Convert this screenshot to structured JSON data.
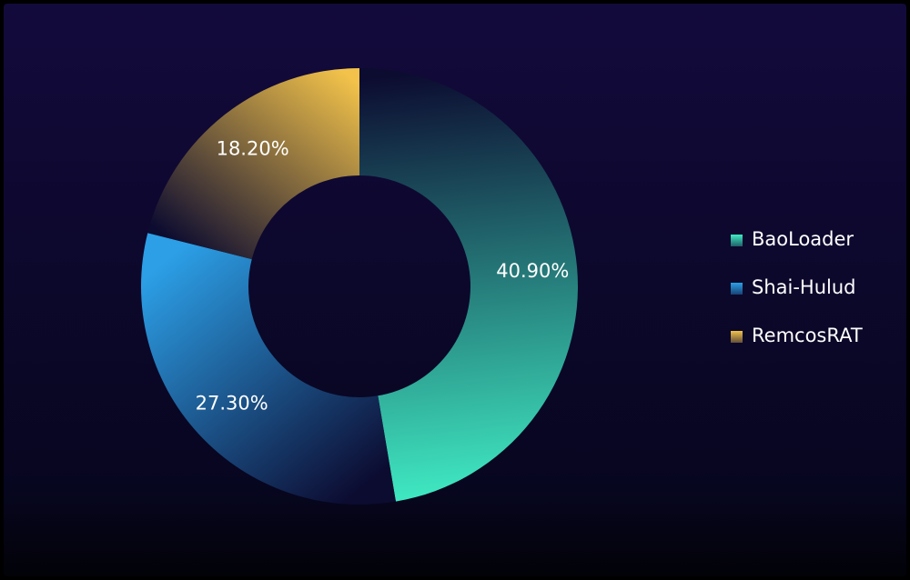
{
  "chart_data": {
    "type": "pie",
    "categories": [
      "BaoLoader",
      "Shai-Hulud",
      "RemcosRAT"
    ],
    "values": [
      40.9,
      27.3,
      18.2
    ],
    "value_labels": [
      "40.90%",
      "27.30%",
      "18.20%"
    ],
    "colors": [
      "#40ecc4",
      "#2c9fe6",
      "#f2c24a"
    ],
    "legend": "right"
  }
}
